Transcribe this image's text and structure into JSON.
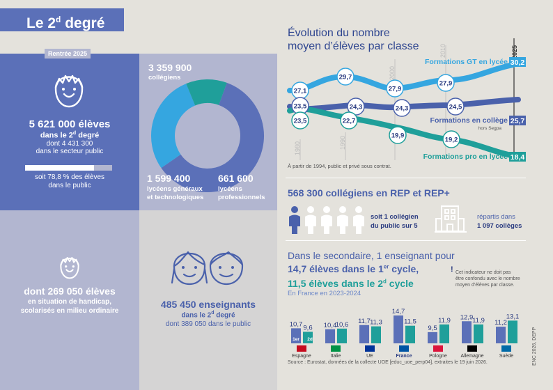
{
  "title": {
    "main": "Le 2",
    "sup": "d",
    "rest": " degré"
  },
  "students": {
    "badge": "Rentrée 2025",
    "count": "5 621 000 élèves",
    "sub_prefix": "dans le 2",
    "sub_sup": "d",
    "sub_suffix": " degré",
    "public_count": "dont 4 431 300",
    "public_label": "dans le secteur public",
    "public_share_pct": 78.8,
    "share_line1": "soit 78,8 % des élèves",
    "share_line2": "dans le public"
  },
  "donut": {
    "segments": [
      {
        "value": 3359900,
        "color": "#5b70b8"
      },
      {
        "value": 1599400,
        "color": "#35a6e0"
      },
      {
        "value": 661600,
        "color": "#1f9f9a"
      }
    ],
    "college_value": "3 359 900",
    "college_label": "collégiens",
    "lycee_gt_value": "1 599 400",
    "lycee_gt_label1": "lycéens généraux",
    "lycee_gt_label2": "et technologiques",
    "lycee_pro_value": "661 600",
    "lycee_pro_label1": "lycéens",
    "lycee_pro_label2": "professionnels"
  },
  "handicap": {
    "count": "dont 269 050 élèves",
    "line1": "en situation de handicap,",
    "line2": "scolarisés en milieu ordinaire"
  },
  "teachers": {
    "count": "485 450 enseignants",
    "sub_prefix": "dans le 2",
    "sub_sup": "d",
    "sub_suffix": " degré",
    "public": "dont 389 050 dans le public"
  },
  "evolution": {
    "title_line1": "Évolution du nombre",
    "title_line2": "moyen d’élèves par classe",
    "years": [
      "1980",
      "1990",
      "2000",
      "2010",
      "2025"
    ],
    "note": "À partir de 1994, public et privé sous contrat.",
    "series": [
      {
        "name": "Formations GT en lycée",
        "color": "#35a6e0",
        "end_value": "30,2",
        "points": [
          "27,1",
          "29,7",
          "27,9",
          "27,9"
        ]
      },
      {
        "name": "Formations en collège",
        "sub": "hors Segpa",
        "color": "#4a61ab",
        "end_value": "25,7",
        "points": [
          "23,5",
          "24,3",
          "24,3",
          "24,5"
        ]
      },
      {
        "name": "Formations pro en lycée",
        "color": "#1f9f9a",
        "end_value": "18,4",
        "points": [
          "23,5",
          "22,7",
          "19,9",
          "19,2"
        ]
      }
    ]
  },
  "rep": {
    "title": "568 300 collégiens en REP et REP+",
    "ratio_line1": "soit 1 collégien",
    "ratio_line2": "du public sur 5",
    "colleges_line1": "répartis dans",
    "colleges_line2": "1 097 collèges"
  },
  "secondary": {
    "line1": "Dans le secondaire, 1 enseignant pour",
    "line2_prefix": "14,7 élèves dans le 1",
    "line2_sup": "er",
    "line2_suffix": " cycle,",
    "line3_prefix": "11,5 élèves dans le 2",
    "line3_sup": "d",
    "line3_suffix": " cycle",
    "line4": "En France en 2023-2024",
    "note_line1": "Cet indicateur ne doit pas",
    "note_line2": "être confondu avec le nombre",
    "note_line3": "moyen d’élèves par classe.",
    "source": "Source : Eurostat, données de la collecte UOE [educ_uoe_perp04], extraites le 19 juin 2026.",
    "credit": "ENC 2026, DEPP",
    "cycle1_tag": "1er",
    "cycle2_tag": "2d"
  },
  "chart_data": {
    "type": "bar",
    "categories": [
      "Espagne",
      "Italie",
      "UE",
      "France",
      "Pologne",
      "Allemagne",
      "Suède"
    ],
    "series": [
      {
        "values": [
          10.7,
          10.4,
          11.7,
          14.7,
          9.5,
          12.9,
          11.2
        ],
        "color": "#5b70b8"
      },
      {
        "values": [
          9.6,
          10.6,
          11.3,
          11.5,
          11.9,
          11.9,
          13.1
        ],
        "color": "#1f9f9a"
      }
    ],
    "labels1": [
      "10,7",
      "10,4",
      "11,7",
      "14,7",
      "9,5",
      "12,9",
      "11,2"
    ],
    "labels2": [
      "9,6",
      "10,6",
      "11,3",
      "11,5",
      "11,9",
      "11,9",
      "13,1"
    ]
  }
}
